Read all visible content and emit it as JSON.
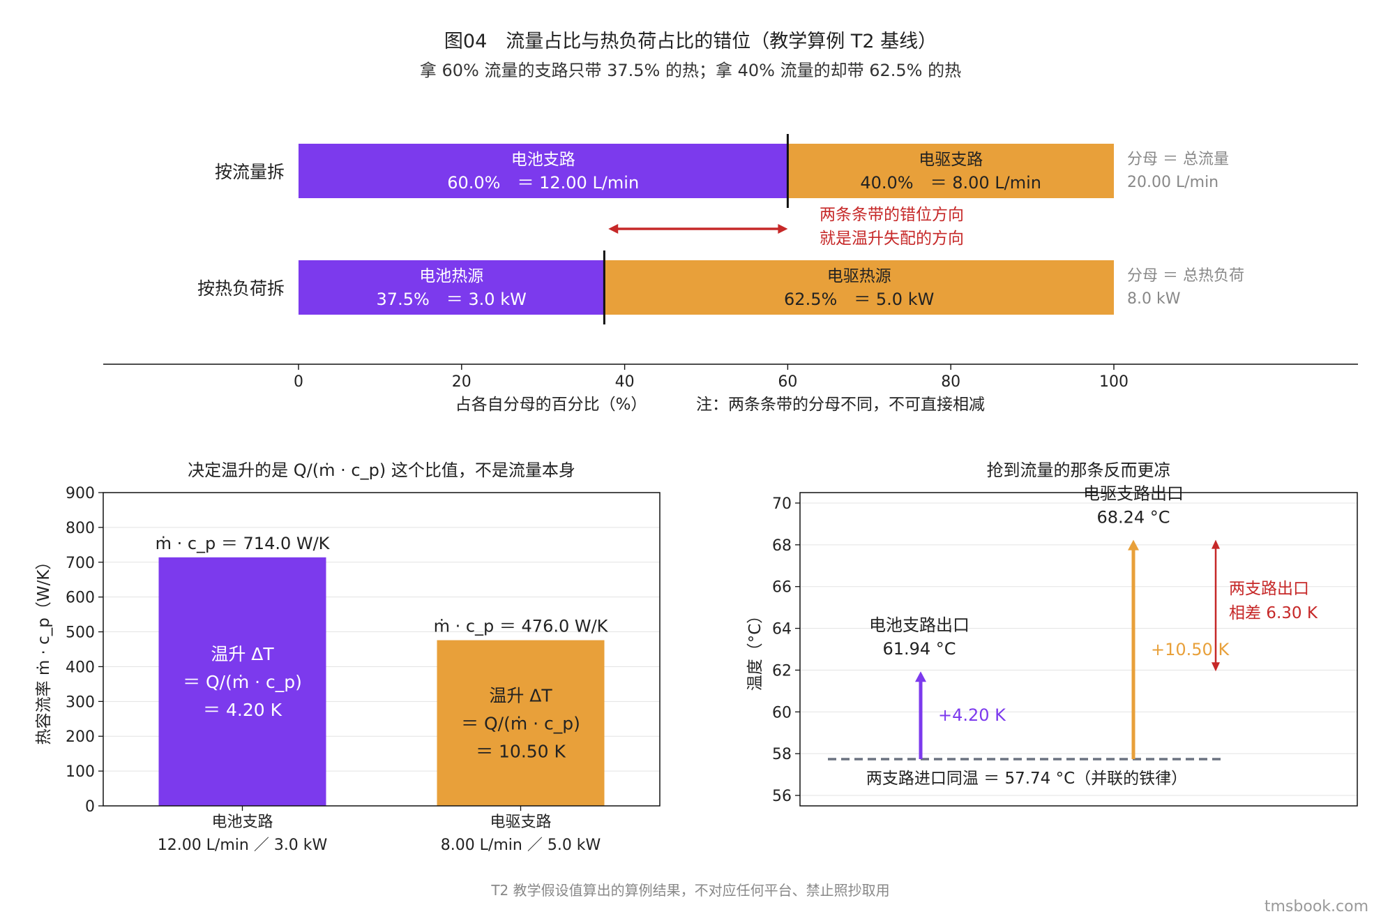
{
  "figure": {
    "title": "图04　流量占比与热负荷占比的错位（教学算例 T2 基线）",
    "subtitle": "拿 60% 流量的支路只带 37.5% 的热；拿 40% 流量的却带 62.5% 的热",
    "footnote": "T2 教学假设值算出的算例结果，不对应任何平台、禁止照抄取用",
    "watermark": "tmsbook.com"
  },
  "colors": {
    "battery": "#7c3aed",
    "motor": "#e8a03a",
    "annotation": "#c62828",
    "muted": "#888888",
    "dashed": "#6b7280"
  },
  "chart_data": [
    {
      "type": "bar",
      "orientation": "horizontal-stacked",
      "xlabel": "占各自分母的百分比（%）",
      "xlim": [
        0,
        100
      ],
      "xticks": [
        0,
        20,
        40,
        60,
        80,
        100
      ],
      "note": "注：两条条带的分母不同，不可直接相减",
      "annotation": [
        "两条条带的错位方向",
        "就是温升失配的方向"
      ],
      "arrow_x": [
        38.0,
        60.0
      ],
      "rows": [
        {
          "label": "按流量拆",
          "denominator": [
            "分母 ＝ 总流量",
            "20.00 L/min"
          ],
          "segments": [
            {
              "name": "电池支路",
              "value": 60.0,
              "text": "60.0%　＝ 12.00 L/min",
              "color": "#7c3aed"
            },
            {
              "name": "电驱支路",
              "value": 40.0,
              "text": "40.0%　＝ 8.00 L/min",
              "color": "#e8a03a"
            }
          ]
        },
        {
          "label": "按热负荷拆",
          "denominator": [
            "分母 ＝ 总热负荷",
            "8.0 kW"
          ],
          "segments": [
            {
              "name": "电池热源",
              "value": 37.5,
              "text": "37.5%　＝ 3.0 kW",
              "color": "#7c3aed"
            },
            {
              "name": "电驱热源",
              "value": 62.5,
              "text": "62.5%　＝ 5.0 kW",
              "color": "#e8a03a"
            }
          ]
        }
      ]
    },
    {
      "type": "bar",
      "title": "决定温升的是 Q/(ṁ · c_p) 这个比值，不是流量本身",
      "ylabel": "热容流率 ṁ · c_p（W/K）",
      "ylim": [
        0,
        900
      ],
      "yticks": [
        0,
        100,
        200,
        300,
        400,
        500,
        600,
        700,
        800,
        900
      ],
      "categories": [
        [
          "电池支路",
          "12.00 L/min ／ 3.0 kW"
        ],
        [
          "电驱支路",
          "8.00 L/min ／ 5.0 kW"
        ]
      ],
      "values": [
        714.0,
        476.0
      ],
      "value_labels": [
        "ṁ · c_p ＝ 714.0 W/K",
        "ṁ · c_p ＝ 476.0 W/K"
      ],
      "inner_labels": [
        [
          "温升 ΔT",
          "＝ Q/(ṁ · c_p)",
          "＝ 4.20 K"
        ],
        [
          "温升 ΔT",
          "＝ Q/(ṁ · c_p)",
          "＝ 10.50 K"
        ]
      ],
      "colors": [
        "#7c3aed",
        "#e8a03a"
      ]
    },
    {
      "type": "line",
      "title": "抢到流量的那条反而更凉",
      "ylabel": "温度（°C）",
      "ylim": [
        55.5,
        70.5
      ],
      "yticks": [
        56,
        58,
        60,
        62,
        64,
        66,
        68,
        70
      ],
      "inlet": {
        "value": 57.74,
        "label": "两支路进口同温 ＝ 57.74 °C（并联的铁律）"
      },
      "arrows": [
        {
          "name": "电池支路出口",
          "from": 57.74,
          "to": 61.94,
          "label": [
            "电池支路出口",
            "61.94 °C"
          ],
          "delta": "+4.20 K",
          "color": "#7c3aed"
        },
        {
          "name": "电驱支路出口",
          "from": 57.74,
          "to": 68.24,
          "label": [
            "电驱支路出口",
            "68.24 °C"
          ],
          "delta": "+10.50 K",
          "color": "#e8a03a"
        }
      ],
      "difference": {
        "from": 61.94,
        "to": 68.24,
        "label": [
          "两支路出口",
          "相差 6.30 K"
        ],
        "color": "#c62828"
      }
    }
  ]
}
